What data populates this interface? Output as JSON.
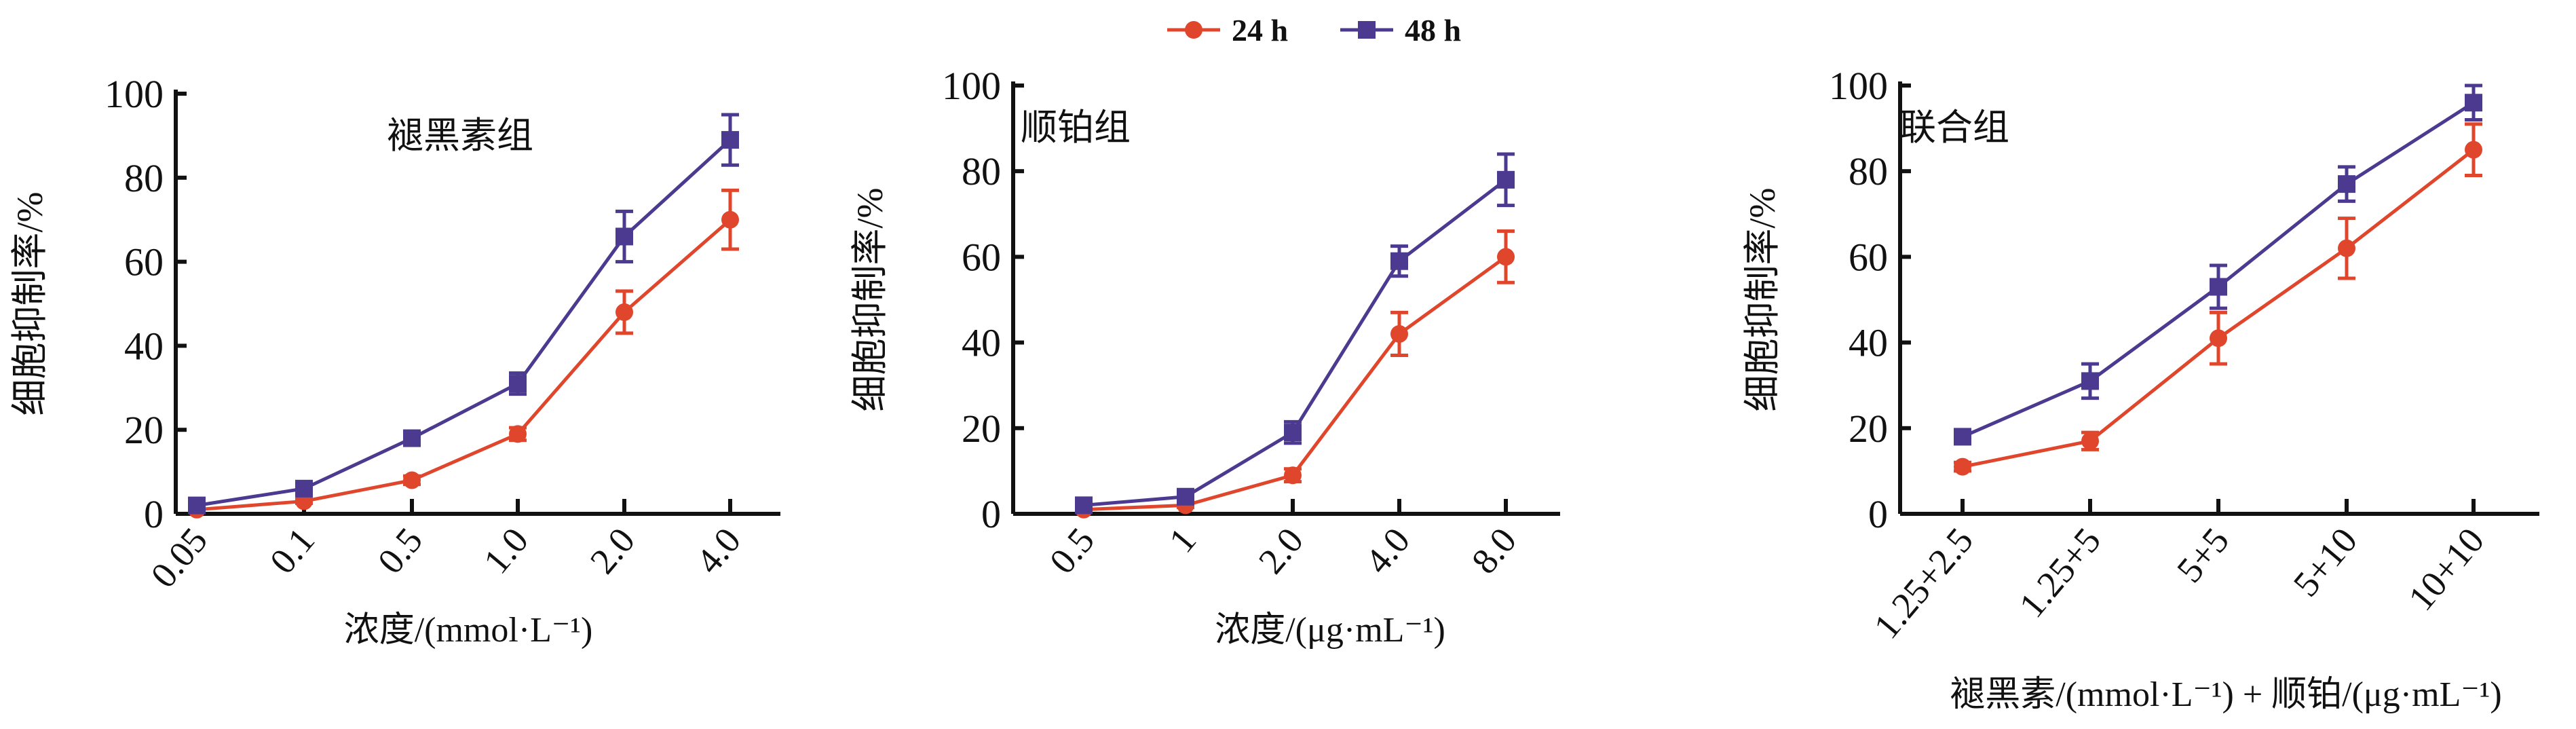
{
  "legend": {
    "position": "top-center",
    "entries": [
      {
        "name": "24 h",
        "color": "#e0462c",
        "marker": "circle"
      },
      {
        "name": "48 h",
        "color": "#4b3a8f",
        "marker": "square"
      }
    ]
  },
  "chart_data": [
    {
      "type": "line",
      "title": "褪黑素组",
      "xlabel": "浓度/(mmol·L⁻¹)",
      "ylabel": "细胞抑制率/%",
      "categories": [
        "0.05",
        "0.1",
        "0.5",
        "1.0",
        "2.0",
        "4.0"
      ],
      "ylim": [
        0,
        100
      ],
      "yticks": [
        0,
        20,
        40,
        60,
        80,
        100
      ],
      "grid": false,
      "series": [
        {
          "name": "24 h",
          "values": [
            1,
            3,
            8,
            19,
            48,
            70
          ],
          "errors": [
            0.5,
            0.5,
            1,
            1.5,
            5,
            7
          ]
        },
        {
          "name": "48 h",
          "values": [
            2,
            6,
            18,
            31,
            66,
            89
          ],
          "errors": [
            1,
            1,
            1,
            2.5,
            6,
            6
          ]
        }
      ]
    },
    {
      "type": "line",
      "title": "顺铂组",
      "xlabel": "浓度/(μg·mL⁻¹)",
      "ylabel": "细胞抑制率/%",
      "categories": [
        "0.5",
        "1",
        "2.0",
        "4.0",
        "8.0"
      ],
      "ylim": [
        0,
        100
      ],
      "yticks": [
        0,
        20,
        40,
        60,
        80,
        100
      ],
      "grid": false,
      "series": [
        {
          "name": "24 h",
          "values": [
            1,
            2,
            9,
            42,
            60
          ],
          "errors": [
            0.5,
            0.5,
            1.5,
            5,
            6
          ]
        },
        {
          "name": "48 h",
          "values": [
            2,
            4,
            19,
            59,
            78
          ],
          "errors": [
            1,
            1,
            2.5,
            3.5,
            6
          ]
        }
      ]
    },
    {
      "type": "line",
      "title": "联合组",
      "xlabel": "褪黑素/(mmol·L⁻¹) + 顺铂/(μg·mL⁻¹)",
      "ylabel": "细胞抑制率/%",
      "categories": [
        "1.25+2.5",
        "1.25+5",
        "5+5",
        "5+10",
        "10+10"
      ],
      "ylim": [
        0,
        100
      ],
      "yticks": [
        0,
        20,
        40,
        60,
        80,
        100
      ],
      "grid": false,
      "series": [
        {
          "name": "24 h",
          "values": [
            11,
            17,
            41,
            62,
            85
          ],
          "errors": [
            1,
            2,
            6,
            7,
            6
          ]
        },
        {
          "name": "48 h",
          "values": [
            18,
            31,
            53,
            77,
            96
          ],
          "errors": [
            1.5,
            4,
            5,
            4,
            4
          ]
        }
      ]
    }
  ]
}
